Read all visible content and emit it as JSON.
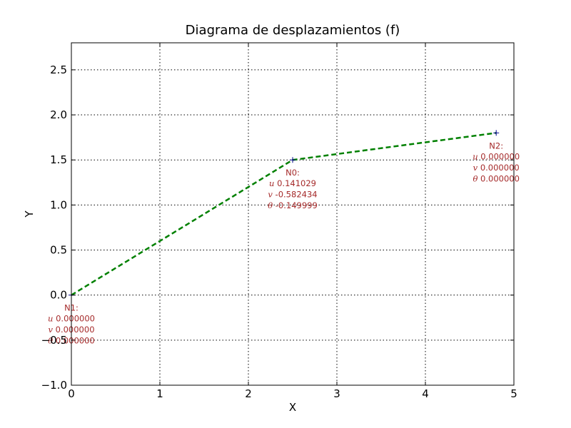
{
  "chart_data": {
    "type": "line",
    "title": "Diagrama de desplazamientos (f)",
    "xlabel": "X",
    "ylabel": "Y",
    "xlim": [
      0,
      5
    ],
    "ylim": [
      -1.0,
      2.8
    ],
    "xticks": [
      0,
      1,
      2,
      3,
      4,
      5
    ],
    "xtick_labels": [
      "0",
      "1",
      "2",
      "3",
      "4",
      "5"
    ],
    "yticks": [
      -1.0,
      -0.5,
      0.0,
      0.5,
      1.0,
      1.5,
      2.0,
      2.5
    ],
    "ytick_labels": [
      "−1.0",
      "−0.5",
      "0.0",
      "0.5",
      "1.0",
      "1.5",
      "2.0",
      "2.5"
    ],
    "grid": true,
    "series": [
      {
        "color": "#008000",
        "style": "dashed",
        "x": [
          0.0,
          2.5,
          4.8
        ],
        "y": [
          0.0,
          1.5,
          1.8
        ]
      }
    ],
    "annotations": [
      {
        "node": "N1:",
        "at": [
          0.0,
          0.0
        ],
        "u": "0.000000",
        "v": "0.000000",
        "theta": "0.000000"
      },
      {
        "node": "N0:",
        "at": [
          2.5,
          1.5
        ],
        "u": "0.141029",
        "v": "-0.582434",
        "theta": "-0.149999"
      },
      {
        "node": "N2:",
        "at": [
          4.8,
          1.8
        ],
        "u": "0.000000",
        "v": "0.000000",
        "theta": "0.000000"
      }
    ],
    "symbols": {
      "u": "u",
      "v": "v",
      "theta": "θ"
    }
  }
}
